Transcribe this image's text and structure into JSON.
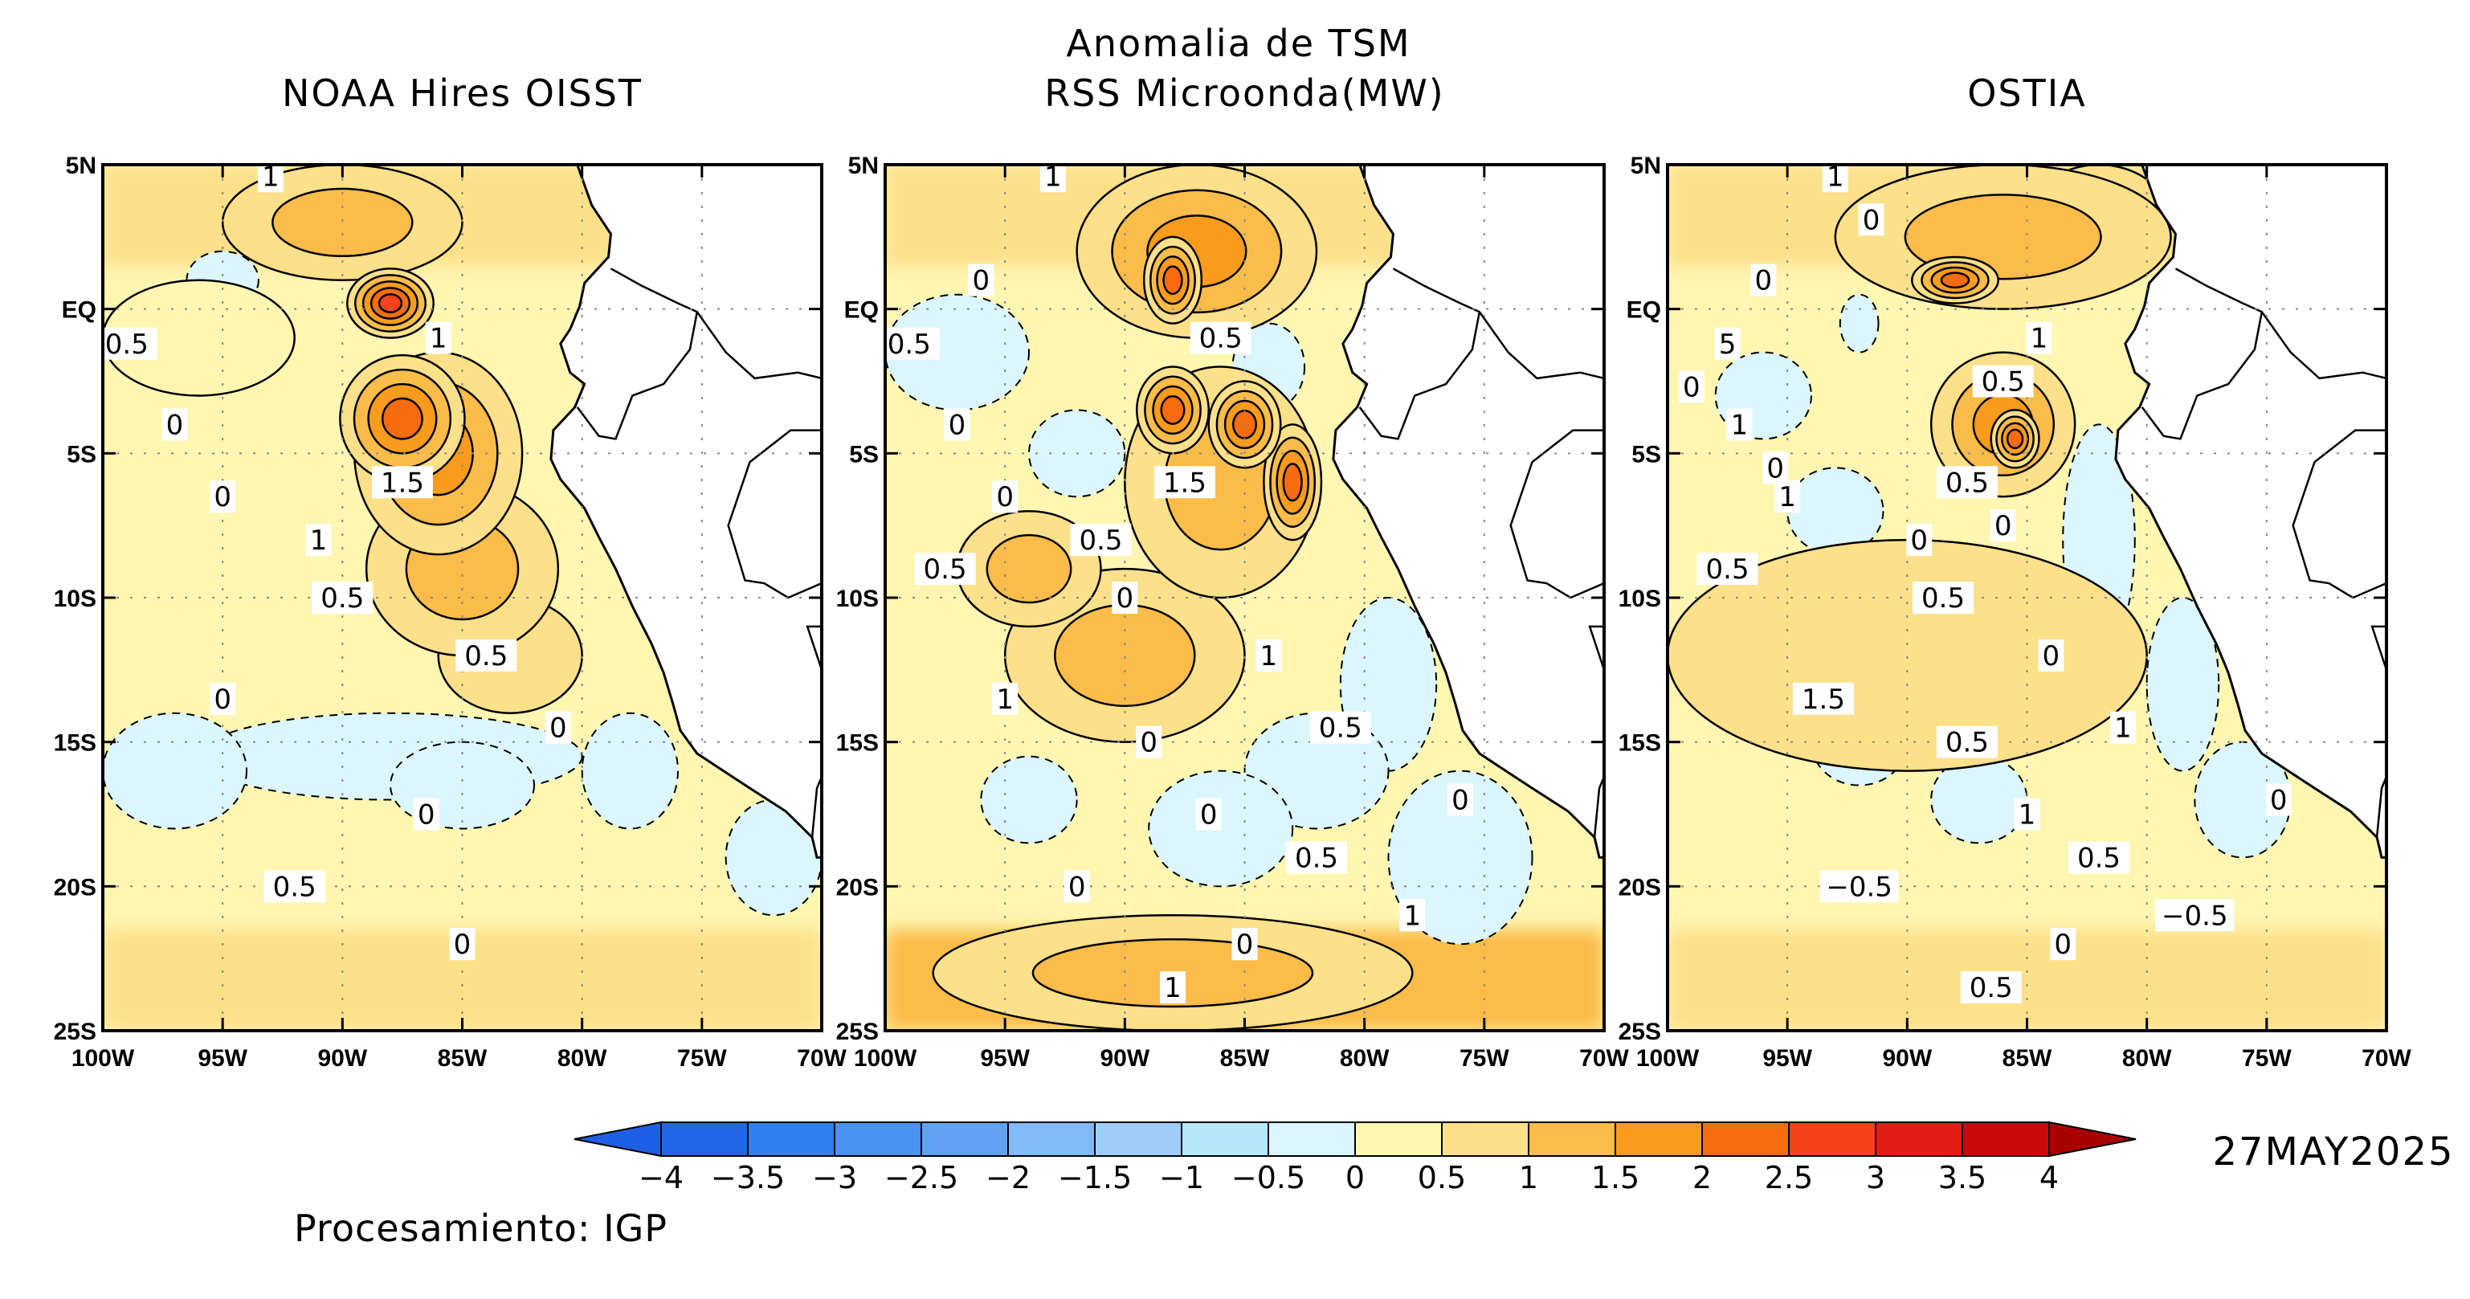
{
  "main_title": [
    "Anomalia de TSM"
  ],
  "panels": [
    {
      "id": "noaa",
      "title": "NOAA Hires OISST",
      "contour_labels": [
        "1",
        "0.5",
        "0",
        "1",
        "1.5",
        "0.5",
        "0.5",
        "0",
        "0",
        "0",
        "0.5",
        "0",
        "0",
        "1"
      ],
      "base_color": "#fff6b2",
      "blobs": [
        {
          "lon": -88,
          "lat": 0.2,
          "value": 2.6,
          "rx": 1.8,
          "ry": 1.2
        },
        {
          "lon": -87.5,
          "lat": -3.8,
          "value": 2.0,
          "rx": 2.6,
          "ry": 2.2
        },
        {
          "lon": -86,
          "lat": -5,
          "value": 1.6,
          "rx": 3.5,
          "ry": 3.5
        },
        {
          "lon": -90,
          "lat": 3,
          "value": 1.2,
          "rx": 5,
          "ry": 2
        },
        {
          "lon": -85,
          "lat": -9,
          "value": 1.2,
          "rx": 4,
          "ry": 3
        },
        {
          "lon": -96,
          "lat": -1,
          "value": 0.3,
          "rx": 4,
          "ry": 2
        },
        {
          "lon": -83,
          "lat": -12,
          "value": 0.6,
          "rx": 3,
          "ry": 2
        }
      ],
      "cold_patches": [
        {
          "lon": -88,
          "lat": -15.5,
          "rx": 8,
          "ry": 1.5
        },
        {
          "lon": -97,
          "lat": -16,
          "rx": 3,
          "ry": 2
        },
        {
          "lon": -78,
          "lat": -16,
          "rx": 2,
          "ry": 2
        },
        {
          "lon": -72,
          "lat": -19,
          "rx": 2,
          "ry": 2
        },
        {
          "lon": -95,
          "lat": 1,
          "rx": 1.5,
          "ry": 1
        },
        {
          "lon": -85,
          "lat": -16.5,
          "rx": 3,
          "ry": 1.5
        }
      ],
      "warm_bottom": 0.9
    },
    {
      "id": "rss",
      "title": "RSS Microonda(MW)",
      "contour_labels": [
        "1",
        "0.5",
        "0",
        "0.5",
        "1.5",
        "0",
        "1",
        "1",
        "0.5",
        "0",
        "0",
        "0",
        "0",
        "0.5",
        "0.5",
        "0",
        "0.5",
        "1",
        "1",
        "0",
        "0"
      ],
      "base_color": "#fff6b2",
      "blobs": [
        {
          "lon": -88,
          "lat": 1,
          "value": 2.4,
          "rx": 1.2,
          "ry": 1.5
        },
        {
          "lon": -88,
          "lat": -3.5,
          "value": 2.3,
          "rx": 1.5,
          "ry": 1.5
        },
        {
          "lon": -85,
          "lat": -4,
          "value": 2.2,
          "rx": 1.5,
          "ry": 1.5
        },
        {
          "lon": -83,
          "lat": -6,
          "value": 2.0,
          "rx": 1.2,
          "ry": 2
        },
        {
          "lon": -87,
          "lat": 2,
          "value": 1.6,
          "rx": 5,
          "ry": 3
        },
        {
          "lon": -86,
          "lat": -6,
          "value": 1.4,
          "rx": 4,
          "ry": 4
        },
        {
          "lon": -90,
          "lat": -12,
          "value": 1.0,
          "rx": 5,
          "ry": 3
        },
        {
          "lon": -94,
          "lat": -9,
          "value": 1.0,
          "rx": 3,
          "ry": 2
        },
        {
          "lon": -88,
          "lat": -23,
          "value": 1.2,
          "rx": 10,
          "ry": 2
        }
      ],
      "cold_patches": [
        {
          "lon": -97,
          "lat": -1.5,
          "rx": 3,
          "ry": 2
        },
        {
          "lon": -84,
          "lat": -2,
          "rx": 1.5,
          "ry": 1.5
        },
        {
          "lon": -92,
          "lat": -5,
          "rx": 2,
          "ry": 1.5
        },
        {
          "lon": -79,
          "lat": -13,
          "rx": 2,
          "ry": 3
        },
        {
          "lon": -82,
          "lat": -16,
          "rx": 3,
          "ry": 2
        },
        {
          "lon": -76,
          "lat": -19,
          "rx": 3,
          "ry": 3
        },
        {
          "lon": -86,
          "lat": -18,
          "rx": 3,
          "ry": 2
        },
        {
          "lon": -94,
          "lat": -17,
          "rx": 2,
          "ry": 1.5
        }
      ],
      "warm_bottom": 1.0
    },
    {
      "id": "ostia",
      "title": "OSTIA",
      "contour_labels": [
        "1",
        "5",
        "1",
        "1",
        "0.5",
        "0.5",
        "0",
        "1.5",
        "1",
        "1",
        "−0.5",
        "0",
        "1",
        "0",
        "0.5",
        "0.5",
        "0.5",
        "0.5",
        "−0.5",
        "0",
        "0",
        "0",
        "0",
        "0",
        "0.5",
        "0"
      ],
      "base_color": "#fff6b2",
      "blobs": [
        {
          "lon": -88,
          "lat": 1,
          "value": 2.2,
          "rx": 1.8,
          "ry": 0.8
        },
        {
          "lon": -85.5,
          "lat": -4.5,
          "value": 2.4,
          "rx": 1,
          "ry": 1
        },
        {
          "lon": -86,
          "lat": -4,
          "value": 1.6,
          "rx": 3,
          "ry": 2.5
        },
        {
          "lon": -86,
          "lat": 2.5,
          "value": 1.4,
          "rx": 7,
          "ry": 2.5
        },
        {
          "lon": -82,
          "lat": 3,
          "value": 1.2,
          "rx": 3,
          "ry": 2
        },
        {
          "lon": -90,
          "lat": -12,
          "value": 0.5,
          "rx": 10,
          "ry": 4
        }
      ],
      "cold_patches": [
        {
          "lon": -92,
          "lat": -0.5,
          "rx": 0.8,
          "ry": 1
        },
        {
          "lon": -82,
          "lat": -8,
          "rx": 1.5,
          "ry": 4
        },
        {
          "lon": -78.5,
          "lat": -13,
          "rx": 1.5,
          "ry": 3
        },
        {
          "lon": -76,
          "lat": -17,
          "rx": 2,
          "ry": 2
        },
        {
          "lon": -93,
          "lat": -7,
          "rx": 2,
          "ry": 1.5
        },
        {
          "lon": -96,
          "lat": -3,
          "rx": 2,
          "ry": 1.5
        },
        {
          "lon": -87,
          "lat": -17,
          "rx": 2,
          "ry": 1.5
        },
        {
          "lon": -92,
          "lat": -15,
          "rx": 2,
          "ry": 1.5
        }
      ],
      "warm_bottom": 0.6
    }
  ],
  "axes": {
    "lat_ticks": [
      "5N",
      "EQ",
      "5S",
      "10S",
      "15S",
      "20S",
      "25S"
    ],
    "lat_values": [
      5,
      0,
      -5,
      -10,
      -15,
      -20,
      -25
    ],
    "lon_ticks": [
      "100W",
      "95W",
      "90W",
      "85W",
      "80W",
      "75W",
      "70W"
    ],
    "lon_values": [
      -100,
      -95,
      -90,
      -85,
      -80,
      -75,
      -70
    ],
    "lat_range": [
      -25,
      5
    ],
    "lon_range": [
      -100,
      -70
    ]
  },
  "colorbar": {
    "labels": [
      "−4",
      "−3.5",
      "−3",
      "−2.5",
      "−2",
      "−1.5",
      "−1",
      "−0.5",
      "0",
      "0.5",
      "1",
      "1.5",
      "2",
      "2.5",
      "3",
      "3.5",
      "4"
    ],
    "low_extension_color": "#1f5fe6",
    "high_extension_color": "#a80000",
    "colors": [
      "#2066e8",
      "#2f7ff0",
      "#4a93f2",
      "#61a2f4",
      "#82b9f7",
      "#9ecef8",
      "#b6e6fa",
      "#dbf6fd",
      "#fff6b2",
      "#fde08a",
      "#fbbc4a",
      "#f99c1e",
      "#f86c10",
      "#f4421a",
      "#e31c18",
      "#c80a0a"
    ]
  },
  "date": "27MAY2025",
  "credit": "Procesamiento: IGP"
}
